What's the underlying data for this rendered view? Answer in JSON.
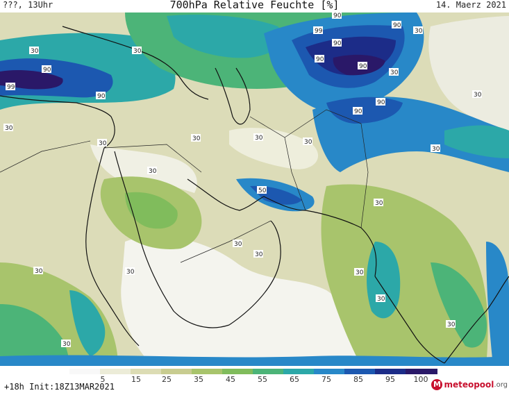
{
  "header": {
    "left": "???, 13Uhr",
    "title": "700hPa Relative Feuchte [%]",
    "date": "14. Maerz 2021"
  },
  "map": {
    "contour_labels": [
      "30",
      "90",
      "99"
    ],
    "fill_colors": {
      "dry": "#f4f4ee",
      "low": "#dcdcb8",
      "mid_low": "#b8c878",
      "mid": "#88c060",
      "green": "#4cb878",
      "teal": "#30a8b0",
      "blue": "#2878c8",
      "deep_blue": "#1848a8",
      "navy": "#202878",
      "purple": "#301868"
    }
  },
  "colorbar": {
    "labels": [
      "5",
      "15",
      "25",
      "35",
      "45",
      "55",
      "65",
      "75",
      "85",
      "95",
      "100"
    ],
    "colors": [
      "#f8f8f8",
      "#ececd8",
      "#dcdcb4",
      "#c8cc90",
      "#a8c46c",
      "#80bc5c",
      "#4cb478",
      "#2ca8a8",
      "#2888c8",
      "#1c58b0",
      "#1c2c88",
      "#2a1868"
    ]
  },
  "footer": {
    "init": "+18h Init:18Z13MAR2021",
    "brand": "meteopool",
    "brand_tld": ".org",
    "brand_initial": "M"
  }
}
